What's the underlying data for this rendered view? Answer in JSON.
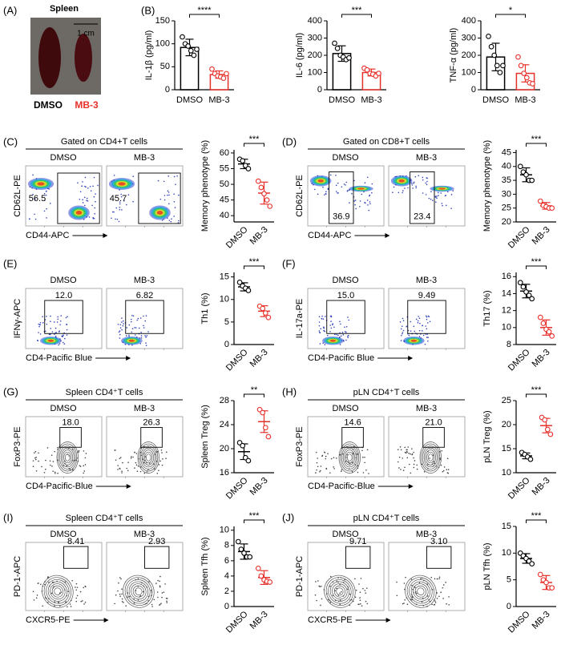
{
  "panel_labels": [
    "(A)",
    "(B)",
    "(C)",
    "(D)",
    "(E)",
    "(F)",
    "(G)",
    "(H)",
    "(I)",
    "(J)"
  ],
  "spleen": {
    "title": "Spleen",
    "scale": "1 cm",
    "labels": [
      "DMSO",
      "MB-3"
    ]
  },
  "flow": [
    {
      "header": "Gated on CD4+T cells",
      "samples": [
        "DMSO",
        "MB-3"
      ],
      "gates": [
        "56.5",
        "45.7"
      ],
      "y_label": "CD62L-PE",
      "x_label": "CD44-APC"
    },
    {
      "header": "Gated on CD8+T cells",
      "samples": [
        "DMSO",
        "MB-3"
      ],
      "gates": [
        "36.9",
        "23.4"
      ],
      "y_label": "CD62L-PE",
      "x_label": "CD44-APC"
    },
    {
      "samples": [
        "DMSO",
        "MB-3"
      ],
      "gates": [
        "12.0",
        "6.82"
      ],
      "y_label": "IFNγ-APC",
      "x_label": "CD4-Pacific Blue"
    },
    {
      "samples": [
        "DMSO",
        "MB-3"
      ],
      "gates": [
        "15.0",
        "9.49"
      ],
      "y_label": "IL-17a-PE",
      "x_label": "CD4-Pacific Blue"
    },
    {
      "header": "Spleen CD4⁺T cells",
      "samples": [
        "DMSO",
        "MB-3"
      ],
      "gates": [
        "18.0",
        "26.3"
      ],
      "y_label": "FoxP3-PE",
      "x_label": "CD4-Pacific-Blue"
    },
    {
      "header": "pLN CD4⁺T cells",
      "samples": [
        "DMSO",
        "MB-3"
      ],
      "gates": [
        "14.6",
        "21.0"
      ],
      "y_label": "FoxP3-PE",
      "x_label": "CD4-Pacific-Blue"
    },
    {
      "header": "Spleen CD4⁺T cells",
      "samples": [
        "DMSO",
        "MB-3"
      ],
      "gates": [
        "8.41",
        "2.93"
      ],
      "y_label": "PD-1-APC",
      "x_label": "CXCR5-PE"
    },
    {
      "header": "pLN CD4⁺T cells",
      "samples": [
        "DMSO",
        "MB-3"
      ],
      "gates": [
        "9.71",
        "3.10"
      ],
      "y_label": "PD-1-APC",
      "x_label": "CXCR5-PE"
    }
  ],
  "chart_data": [
    {
      "type": "bar",
      "y_label": "IL-1β (pg/ml)",
      "categories": [
        "DMSO",
        "MB-3"
      ],
      "colors": [
        "#000000",
        "#e8302a"
      ],
      "values": [
        92,
        33
      ],
      "errors": [
        18,
        8
      ],
      "points": [
        [
          115,
          100,
          95,
          85,
          75,
          88
        ],
        [
          45,
          35,
          30,
          28,
          25,
          35
        ]
      ],
      "significance": "****",
      "ylim": [
        0,
        150
      ],
      "yticks": [
        0,
        50,
        100,
        150
      ]
    },
    {
      "type": "bar",
      "y_label": "IL-6 (pg/ml)",
      "categories": [
        "DMSO",
        "MB-3"
      ],
      "colors": [
        "#000000",
        "#e8302a"
      ],
      "values": [
        210,
        100
      ],
      "errors": [
        45,
        20
      ],
      "points": [
        [
          270,
          240,
          200,
          190,
          175,
          185
        ],
        [
          125,
          115,
          95,
          90,
          80,
          95
        ]
      ],
      "significance": "***",
      "ylim": [
        0,
        400
      ],
      "yticks": [
        0,
        100,
        200,
        300,
        400
      ]
    },
    {
      "type": "bar",
      "y_label": "TNF-α (pg/ml)",
      "categories": [
        "DMSO",
        "MB-3"
      ],
      "colors": [
        "#000000",
        "#e8302a"
      ],
      "values": [
        190,
        95
      ],
      "errors": [
        80,
        50
      ],
      "points": [
        [
          310,
          250,
          200,
          140,
          100,
          140
        ],
        [
          190,
          140,
          95,
          70,
          40,
          35
        ]
      ],
      "significance": "*",
      "ylim": [
        0,
        400
      ],
      "yticks": [
        0,
        100,
        200,
        300,
        400
      ]
    },
    {
      "type": "dot",
      "y_label": "Memory phenotype (%)",
      "categories": [
        "DMSO",
        "MB-3"
      ],
      "colors": [
        "#000000",
        "#e8302a"
      ],
      "values": [
        56.5,
        47.2
      ],
      "errors": [
        1.5,
        3.5
      ],
      "points": [
        [
          58,
          57.5,
          56,
          55
        ],
        [
          51,
          49,
          47,
          45,
          43
        ]
      ],
      "significance": "***",
      "ylim": [
        38,
        61
      ],
      "yticks": [
        40,
        45,
        50,
        55,
        60
      ]
    },
    {
      "type": "dot",
      "y_label": "Memory phenotype (%)",
      "categories": [
        "DMSO",
        "MB-3"
      ],
      "colors": [
        "#000000",
        "#e8302a"
      ],
      "values": [
        37,
        25.8
      ],
      "errors": [
        2.5,
        1.2
      ],
      "points": [
        [
          40,
          38,
          37,
          35,
          35
        ],
        [
          27.5,
          26,
          25.5,
          25,
          25
        ]
      ],
      "significance": "***",
      "ylim": [
        20,
        46
      ],
      "yticks": [
        20,
        25,
        30,
        35,
        40,
        45
      ]
    },
    {
      "type": "dot",
      "y_label": "Th1 (%)",
      "categories": [
        "DMSO",
        "MB-3"
      ],
      "colors": [
        "#000000",
        "#e8302a"
      ],
      "values": [
        12.8,
        7.4
      ],
      "errors": [
        0.9,
        1.2
      ],
      "points": [
        [
          13.8,
          13,
          12.5,
          12
        ],
        [
          8.5,
          8,
          7,
          6
        ]
      ],
      "significance": "***",
      "ylim": [
        0,
        16
      ],
      "yticks": [
        0,
        5,
        10,
        15
      ]
    },
    {
      "type": "dot",
      "y_label": "Th17 (%)",
      "categories": [
        "DMSO",
        "MB-3"
      ],
      "colors": [
        "#000000",
        "#e8302a"
      ],
      "values": [
        14.3,
        10
      ],
      "errors": [
        0.8,
        0.9
      ],
      "points": [
        [
          15.3,
          14.8,
          14.2,
          13.8,
          13.4
        ],
        [
          11.2,
          10.5,
          9.8,
          9.5,
          9
        ]
      ],
      "significance": "***",
      "ylim": [
        8,
        16.5
      ],
      "yticks": [
        8,
        10,
        12,
        14,
        16
      ]
    },
    {
      "type": "dot",
      "y_label": "Spleen Treg (%)",
      "categories": [
        "DMSO",
        "MB-3"
      ],
      "colors": [
        "#000000",
        "#e8302a"
      ],
      "values": [
        19.5,
        24.5
      ],
      "errors": [
        1.3,
        1.8
      ],
      "points": [
        [
          21,
          20.5,
          18.5,
          18
        ],
        [
          26.5,
          26,
          23.5,
          22
        ]
      ],
      "significance": "**",
      "ylim": [
        16,
        28
      ],
      "yticks": [
        16,
        20,
        24,
        28
      ]
    },
    {
      "type": "dot",
      "y_label": "pLN Treg (%)",
      "categories": [
        "DMSO",
        "MB-3"
      ],
      "colors": [
        "#000000",
        "#e8302a"
      ],
      "values": [
        13.5,
        19.8
      ],
      "errors": [
        0.6,
        1.5
      ],
      "points": [
        [
          14.2,
          13.8,
          13.3,
          12.8
        ],
        [
          21.5,
          21,
          19,
          18
        ]
      ],
      "significance": "***",
      "ylim": [
        10,
        25
      ],
      "yticks": [
        10,
        15,
        20,
        25
      ]
    },
    {
      "type": "dot",
      "y_label": "Spleen Tfh (%)",
      "categories": [
        "DMSO",
        "MB-3"
      ],
      "colors": [
        "#000000",
        "#e8302a"
      ],
      "values": [
        7.2,
        3.8
      ],
      "errors": [
        1,
        0.9
      ],
      "points": [
        [
          8.5,
          7.5,
          7,
          6.5,
          6.5
        ],
        [
          5,
          4,
          3.5,
          3.3,
          3.2
        ]
      ],
      "significance": "***",
      "ylim": [
        0,
        10.5
      ],
      "yticks": [
        0,
        2,
        4,
        6,
        8,
        10
      ]
    },
    {
      "type": "dot",
      "y_label": "pLN Tfh (%)",
      "categories": [
        "DMSO",
        "MB-3"
      ],
      "colors": [
        "#000000",
        "#e8302a"
      ],
      "values": [
        9,
        4.5
      ],
      "errors": [
        0.9,
        1.3
      ],
      "points": [
        [
          10,
          9.5,
          9,
          8.5,
          8
        ],
        [
          6,
          5,
          4.5,
          3.5,
          3.5
        ]
      ],
      "significance": "***",
      "ylim": [
        0,
        15
      ],
      "yticks": [
        0,
        5,
        10,
        15
      ]
    }
  ]
}
